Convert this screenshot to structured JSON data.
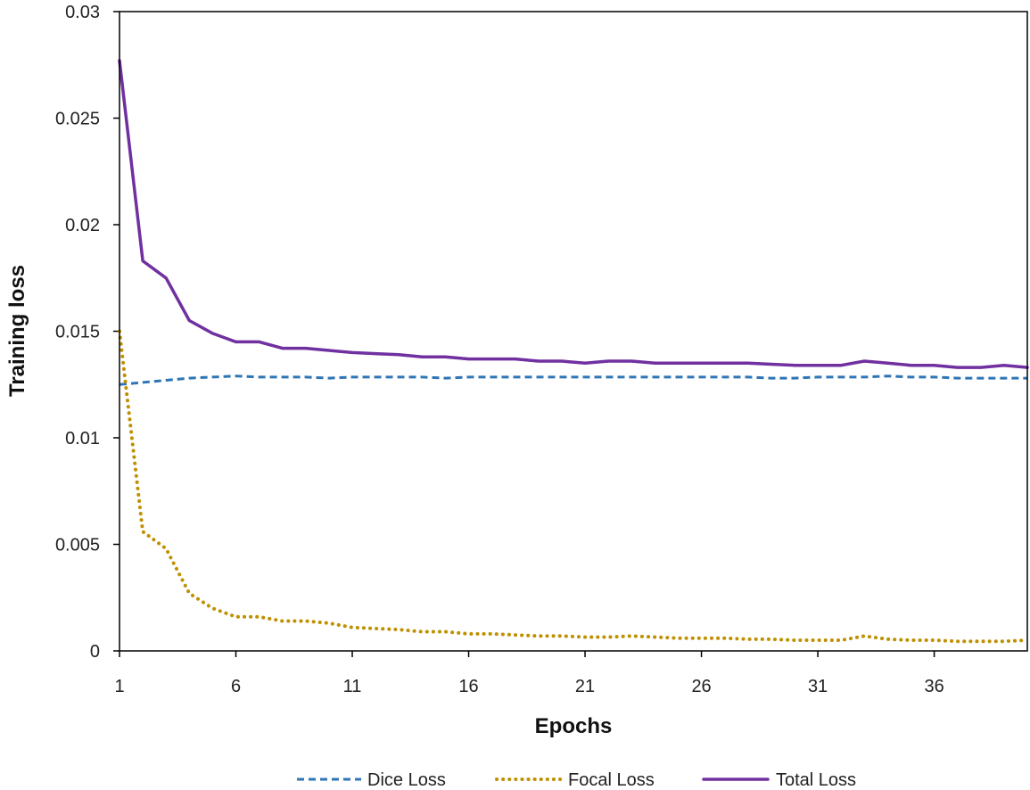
{
  "chart_data": {
    "type": "line",
    "title": "",
    "xlabel": "Epochs",
    "ylabel": "Training loss",
    "xlim": [
      1,
      40
    ],
    "ylim": [
      0,
      0.03
    ],
    "x_ticks": [
      1,
      6,
      11,
      16,
      21,
      26,
      31,
      36
    ],
    "y_ticks": [
      0,
      0.005,
      0.01,
      0.015,
      0.02,
      0.025,
      0.03
    ],
    "y_tick_labels": [
      "0",
      "0.005",
      "0.01",
      "0.015",
      "0.02",
      "0.025",
      "0.03"
    ],
    "grid": false,
    "legend_position": "bottom",
    "x": [
      1,
      2,
      3,
      4,
      5,
      6,
      7,
      8,
      9,
      10,
      11,
      12,
      13,
      14,
      15,
      16,
      17,
      18,
      19,
      20,
      21,
      22,
      23,
      24,
      25,
      26,
      27,
      28,
      29,
      30,
      31,
      32,
      33,
      34,
      35,
      36,
      37,
      38,
      39,
      40
    ],
    "series": [
      {
        "name": "Dice Loss",
        "color": "#2E75B6",
        "style": "dashed",
        "values": [
          0.0125,
          0.0126,
          0.0127,
          0.0128,
          0.01285,
          0.0129,
          0.01285,
          0.01285,
          0.01285,
          0.0128,
          0.01285,
          0.01285,
          0.01285,
          0.01285,
          0.0128,
          0.01285,
          0.01285,
          0.01285,
          0.01285,
          0.01285,
          0.01285,
          0.01285,
          0.01285,
          0.01285,
          0.01285,
          0.01285,
          0.01285,
          0.01285,
          0.0128,
          0.0128,
          0.01285,
          0.01285,
          0.01285,
          0.0129,
          0.01285,
          0.01285,
          0.0128,
          0.0128,
          0.0128,
          0.0128
        ]
      },
      {
        "name": "Focal Loss",
        "color": "#BF9000",
        "style": "dotted",
        "values": [
          0.015,
          0.0056,
          0.0048,
          0.0027,
          0.002,
          0.0016,
          0.0016,
          0.0014,
          0.0014,
          0.0013,
          0.0011,
          0.00105,
          0.001,
          0.0009,
          0.0009,
          0.0008,
          0.0008,
          0.00075,
          0.0007,
          0.0007,
          0.00065,
          0.00065,
          0.0007,
          0.00065,
          0.0006,
          0.0006,
          0.0006,
          0.00055,
          0.00055,
          0.0005,
          0.0005,
          0.0005,
          0.0007,
          0.00055,
          0.0005,
          0.0005,
          0.00045,
          0.00045,
          0.00045,
          0.0005
        ]
      },
      {
        "name": "Total Loss",
        "color": "#7030A0",
        "style": "solid",
        "values": [
          0.0277,
          0.0183,
          0.0175,
          0.0155,
          0.0149,
          0.0145,
          0.0145,
          0.0142,
          0.0142,
          0.0141,
          0.014,
          0.01395,
          0.0139,
          0.0138,
          0.0138,
          0.0137,
          0.0137,
          0.0137,
          0.0136,
          0.0136,
          0.0135,
          0.0136,
          0.0136,
          0.0135,
          0.0135,
          0.0135,
          0.0135,
          0.0135,
          0.01345,
          0.0134,
          0.0134,
          0.0134,
          0.0136,
          0.0135,
          0.0134,
          0.0134,
          0.0133,
          0.0133,
          0.0134,
          0.0133
        ]
      }
    ]
  }
}
